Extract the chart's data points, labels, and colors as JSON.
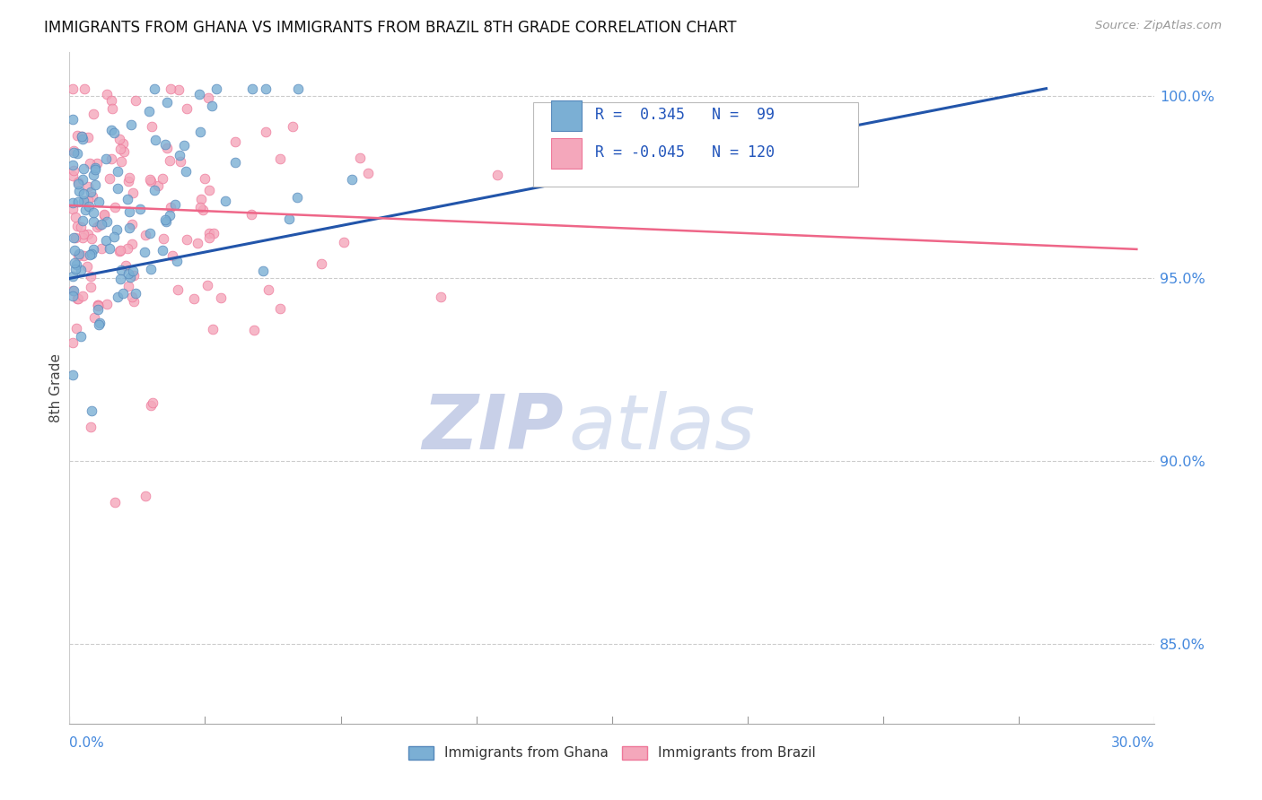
{
  "title": "IMMIGRANTS FROM GHANA VS IMMIGRANTS FROM BRAZIL 8TH GRADE CORRELATION CHART",
  "source": "Source: ZipAtlas.com",
  "ylabel": "8th Grade",
  "xmin": 0.0,
  "xmax": 0.3,
  "ymin": 0.828,
  "ymax": 1.012,
  "ytick_vals": [
    0.85,
    0.9,
    0.95,
    1.0
  ],
  "ytick_labels": [
    "85.0%",
    "90.0%",
    "95.0%",
    "100.0%"
  ],
  "ghana_color": "#7BAFD4",
  "brazil_color": "#F4A7BB",
  "ghana_edge": "#5588BB",
  "brazil_edge": "#EE7799",
  "ghana_R": 0.345,
  "ghana_N": 99,
  "brazil_R": -0.045,
  "brazil_N": 120,
  "trend_ghana_color": "#2255AA",
  "trend_brazil_color": "#EE6688",
  "ghana_trend_x0": 0.0,
  "ghana_trend_x1": 0.27,
  "ghana_trend_y0": 0.95,
  "ghana_trend_y1": 1.002,
  "brazil_trend_x0": 0.0,
  "brazil_trend_x1": 0.295,
  "brazil_trend_y0": 0.97,
  "brazil_trend_y1": 0.958,
  "watermark_zip": "ZIP",
  "watermark_atlas": "atlas",
  "watermark_color": "#D8DCF0",
  "background_color": "#FFFFFF",
  "legend_R_ghana": "R =  0.345",
  "legend_N_ghana": "N =  99",
  "legend_R_brazil": "R = -0.045",
  "legend_N_brazil": "N = 120",
  "seed_ghana": 42,
  "seed_brazil": 99
}
